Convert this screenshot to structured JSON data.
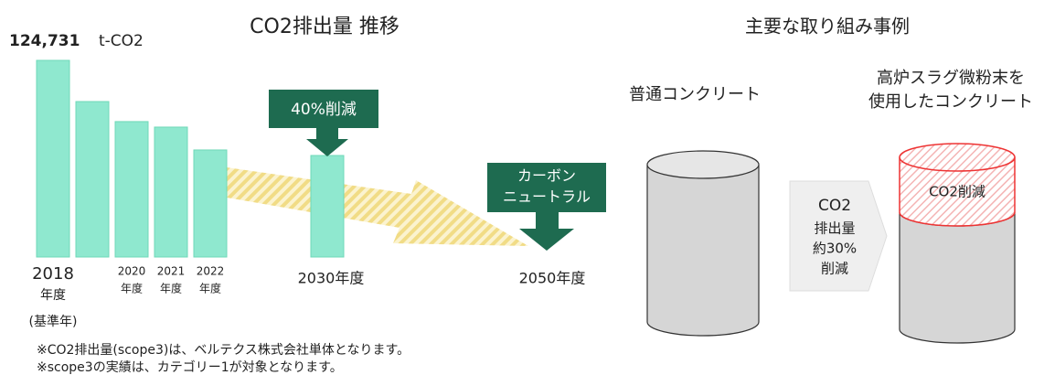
{
  "chart_data": {
    "type": "bar",
    "title": "CO2排出量 推移",
    "categories": [
      "2018",
      null,
      "2020",
      "2021",
      "2022",
      "2030年度",
      "2050年度"
    ],
    "category_sublabels": [
      "年度",
      null,
      "年度",
      "年度",
      "年度",
      null,
      null
    ],
    "base_year_note": "(基準年)",
    "values": [
      124731,
      98600,
      85900,
      82400,
      67900,
      64400,
      null
    ],
    "value_labels": [
      "124,731",
      null,
      null,
      null,
      null,
      null,
      null
    ],
    "unit": "t-CO2",
    "ylim": [
      0,
      124731
    ],
    "color": "#8fe8cf",
    "annotations": {
      "reduction_2030": "40%削減",
      "neutral_2050": [
        "カーボン",
        "ニュートラル"
      ]
    }
  },
  "example": {
    "title": "主要な取り組み事例",
    "normal": "普通コンクリート",
    "slag": [
      "高炉スラグ微粉末を",
      "使用したコンクリート"
    ],
    "arrow": [
      "CO2",
      "排出量",
      "約30%",
      "削減"
    ],
    "reduced": "CO2削減"
  },
  "footnotes": [
    "※CO2排出量(scope3)は、ベルテクス株式会社単体となります。",
    "※scope3の実績は、カテゴリー1が対象となります。"
  ]
}
